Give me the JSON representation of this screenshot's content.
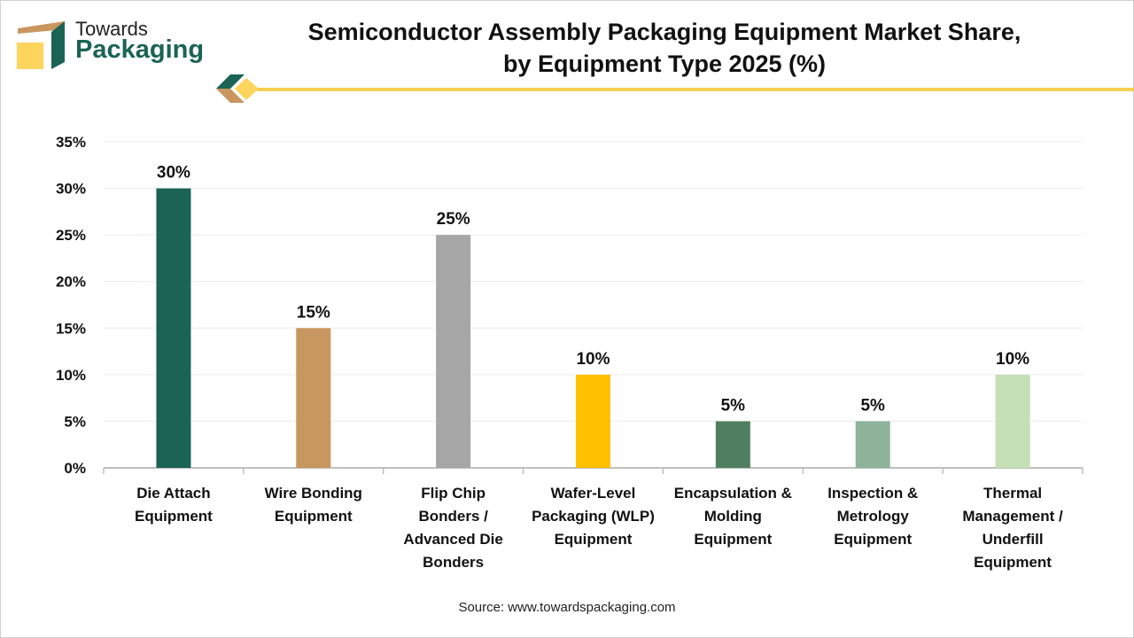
{
  "brand": {
    "line1": "Towards",
    "line2": "Packaging",
    "colors": {
      "green": "#1a6355",
      "tan": "#c8965f",
      "yellow": "#fdd45c"
    }
  },
  "title_line1": "Semiconductor Assembly Packaging Equipment Market Share,",
  "title_line2": "by Equipment Type 2025 (%)",
  "source": "Source: www.towardspackaging.com",
  "chart_data": {
    "type": "bar",
    "title": "Semiconductor Assembly Packaging Equipment Market Share, by Equipment Type 2025 (%)",
    "categories": [
      [
        "Die Attach",
        "Equipment"
      ],
      [
        "Wire Bonding",
        "Equipment"
      ],
      [
        "Flip Chip",
        "Bonders /",
        "Advanced Die",
        "Bonders"
      ],
      [
        "Wafer-Level",
        "Packaging (WLP)",
        "Equipment"
      ],
      [
        "Encapsulation &",
        "Molding",
        "Equipment"
      ],
      [
        "Inspection &",
        "Metrology",
        "Equipment"
      ],
      [
        "Thermal",
        "Management /",
        "Underfill",
        "Equipment"
      ]
    ],
    "values": [
      30,
      15,
      25,
      10,
      5,
      5,
      10
    ],
    "data_labels": [
      "30%",
      "15%",
      "25%",
      "10%",
      "5%",
      "5%",
      "10%"
    ],
    "colors": [
      "#1a6355",
      "#c8965f",
      "#a6a6a6",
      "#ffc000",
      "#4f7f5e",
      "#8db39a",
      "#c5e0b4"
    ],
    "yticks": [
      "0%",
      "5%",
      "10%",
      "15%",
      "20%",
      "25%",
      "30%",
      "35%"
    ],
    "ylim": [
      0,
      35
    ],
    "grid": true,
    "xlabel": "",
    "ylabel": ""
  }
}
